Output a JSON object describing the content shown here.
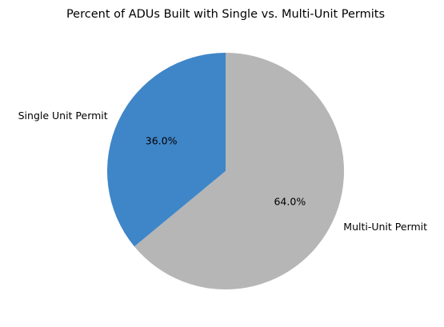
{
  "chart_data": {
    "type": "pie",
    "title": "Percent of ADUs Built with Single vs. Multi-Unit Permits",
    "slices": [
      {
        "label": "Single Unit Permit",
        "value": 36.0,
        "pct_label": "36.0%",
        "color": "#3f86c8"
      },
      {
        "label": "Multi-Unit Permit",
        "value": 64.0,
        "pct_label": "64.0%",
        "color": "#b6b6b6"
      }
    ],
    "start_angle_deg": 90,
    "direction": "counterclockwise"
  }
}
